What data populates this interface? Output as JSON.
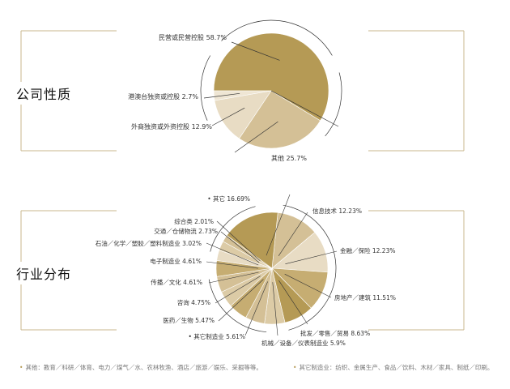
{
  "colors": {
    "frame": "#c8b78e",
    "leader": "#333333",
    "slice_light": "#e8dcc4",
    "slice_mid": "#d4c096",
    "slice_dark": "#b59a55",
    "slice_gold": "#c6ad72"
  },
  "section1": {
    "title": "公司性质"
  },
  "section2": {
    "title": "行业分布"
  },
  "footnotes": {
    "left": "其他：教育／科研／体育、电力／煤气／水、农林牧渔、酒店／旅游／娱乐、采掘等等。",
    "right": "其它制造业：纺织、金属生产、食品／饮料、木材／家具、制纸／印刷。"
  },
  "chart_data": [
    {
      "type": "pie",
      "title": "公司性质",
      "series": [
        {
          "labels": [
            "民营或民营控股",
            "其他",
            "外商独资或外资控股",
            "港澳台独资或控股"
          ],
          "values": [
            58.7,
            25.7,
            12.9,
            2.7
          ],
          "value_labels": [
            "58.7%",
            "25.7%",
            "12.9%",
            "2.7%"
          ],
          "colors": [
            "#b59a55",
            "#d4c096",
            "#e8dcc4",
            "#efe6d4"
          ]
        }
      ]
    },
    {
      "type": "pie",
      "title": "行业分布",
      "series": [
        {
          "labels": [
            "信息技术",
            "金融／保险",
            "房地产／建筑",
            "批发／零售／贸易",
            "机械／设备／仪表制造业",
            "其它制造业",
            "医药／生物",
            "咨询",
            "传播／文化",
            "电子制造业",
            "石油／化学／塑胶／塑料制造业",
            "交通／仓储物流",
            "综合类",
            "其它"
          ],
          "values": [
            12.23,
            12.23,
            11.51,
            8.63,
            5.9,
            5.61,
            5.47,
            4.75,
            4.61,
            4.61,
            3.02,
            2.73,
            2.01,
            16.69
          ],
          "value_labels": [
            "12.23%",
            "12.23%",
            "11.51%",
            "8.63%",
            "5.9%",
            "5.61%",
            "5.47%",
            "4.75%",
            "4.61%",
            "4.61%",
            "3.02%",
            "2.73%",
            "2.01%",
            "16.69%"
          ],
          "marked": [
            false,
            false,
            false,
            false,
            false,
            true,
            false,
            false,
            false,
            false,
            false,
            false,
            false,
            true
          ],
          "colors": [
            "#d4c096",
            "#e8dcc4",
            "#c6ad72",
            "#b59a55",
            "#dccba6",
            "#d4c096",
            "#c6ad72",
            "#dccba6",
            "#d4c096",
            "#c6ad72",
            "#e8dcc4",
            "#dccba6",
            "#d4c096",
            "#b59a55"
          ]
        }
      ]
    }
  ]
}
